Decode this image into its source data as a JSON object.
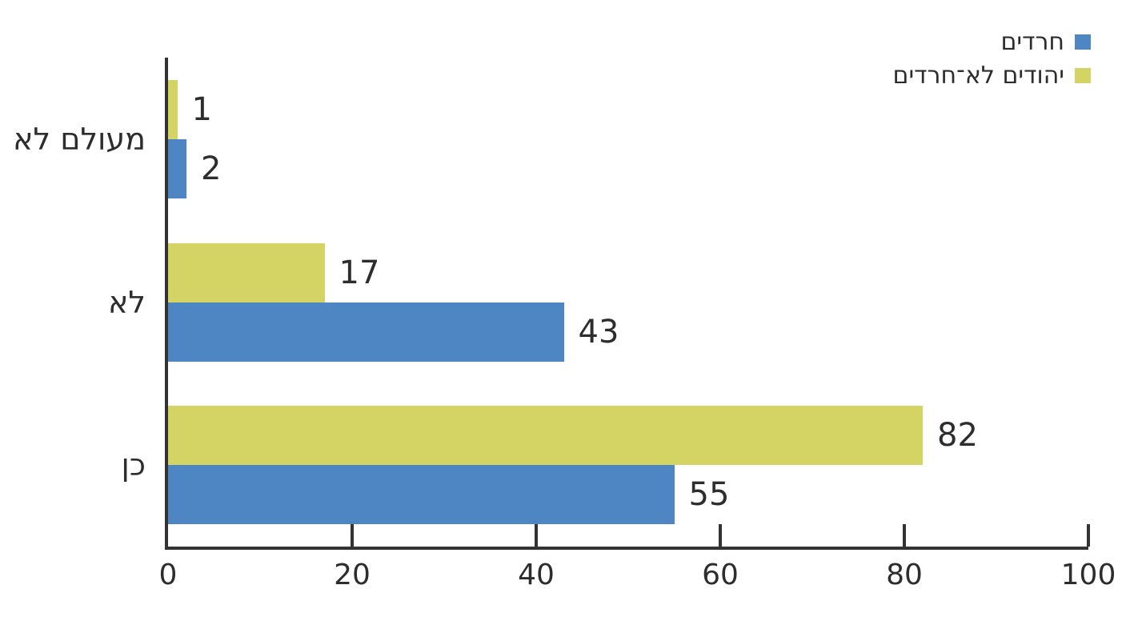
{
  "chart_data": {
    "type": "bar",
    "orientation": "horizontal",
    "title": "",
    "categories": [
      "מעולם לא",
      "לא",
      "כן"
    ],
    "series": [
      {
        "key": "haredim",
        "name": "חרדים",
        "color": "#4E86C4",
        "values": [
          2,
          43,
          55
        ]
      },
      {
        "key": "non-haredi-jews",
        "name": "יהודים לא־חרדים",
        "color": "#D3D464",
        "values": [
          1,
          17,
          82
        ]
      }
    ],
    "row_order": [
      1,
      0
    ],
    "xlim": [
      0,
      100
    ],
    "x_ticks": [
      0,
      20,
      40,
      60,
      80,
      100
    ],
    "legend_position": "top-right",
    "value_labels": true,
    "grid": false
  },
  "colors": {
    "axis": "#333333",
    "text": "#2D2D2D",
    "background": "#FFFFFF"
  }
}
